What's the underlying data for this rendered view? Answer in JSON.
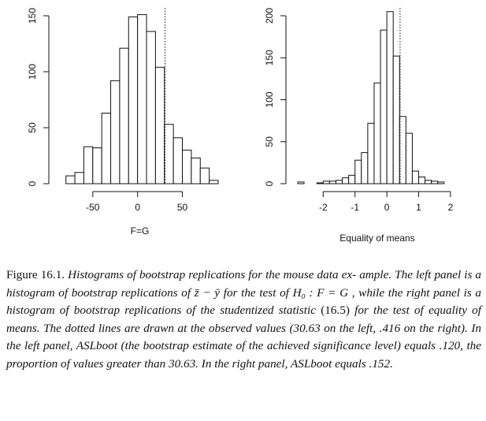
{
  "chart_data": [
    {
      "type": "bar",
      "xlabel": "F=G",
      "ylabel": "",
      "xlim": [
        -85,
        90
      ],
      "ylim": [
        0,
        150
      ],
      "x_ticks": [
        -50,
        0,
        50
      ],
      "y_ticks": [
        0,
        50,
        100,
        150
      ],
      "bin_edges": [
        -80,
        -70,
        -60,
        -50,
        -40,
        -30,
        -20,
        -10,
        0,
        10,
        20,
        30,
        40,
        50,
        60,
        70,
        80,
        90
      ],
      "values": [
        7,
        10,
        33,
        32,
        63,
        92,
        121,
        149,
        151,
        136,
        104,
        53,
        41,
        30,
        23,
        14,
        3
      ],
      "reference_line": 30.63,
      "grid": false
    },
    {
      "type": "bar",
      "xlabel": "Equality of means",
      "ylabel": "",
      "xlim": [
        -2.8,
        2.2
      ],
      "ylim": [
        0,
        200
      ],
      "x_ticks": [
        -2,
        -1,
        0,
        1,
        2
      ],
      "y_ticks": [
        0,
        50,
        100,
        150,
        200
      ],
      "bin_edges": [
        -2.8,
        -2.6,
        -2.4,
        -2.2,
        -2.0,
        -1.8,
        -1.6,
        -1.4,
        -1.2,
        -1.0,
        -0.8,
        -0.6,
        -0.4,
        -0.2,
        0.0,
        0.2,
        0.4,
        0.6,
        0.8,
        1.0,
        1.2,
        1.4,
        1.6,
        1.8,
        2.0
      ],
      "values": [
        2,
        0,
        0,
        1,
        3,
        3,
        4,
        7,
        10,
        28,
        37,
        72,
        120,
        183,
        205,
        152,
        80,
        60,
        15,
        8,
        4,
        3,
        2,
        0
      ],
      "reference_line": 0.416,
      "grid": false
    }
  ],
  "caption": {
    "label": "Figure 16.1.",
    "segments": [
      {
        "text": "Histograms of bootstrap replications for the mouse data ex-",
        "style": "it"
      },
      {
        "text": "ample. The left panel is a histogram of bootstrap replications of ",
        "style": "it"
      },
      {
        "text": "z̄ − ȳ",
        "style": "it"
      },
      {
        "text": " for the test of ",
        "style": "it"
      },
      {
        "text": "H₀ : F = G",
        "style": "it"
      },
      {
        "text": ", while the right panel is a histogram of bootstrap replications of the studentized statistic ",
        "style": "it"
      },
      {
        "text": "(16.5)",
        "style": "rm"
      },
      {
        "text": " for the test of equality of means. The dotted lines are drawn at the observed values (30.63 on the left, .416 on the right). In the left panel, ",
        "style": "it"
      },
      {
        "text": "ASLboot",
        "style": "it"
      },
      {
        "text": " (the bootstrap estimate of the achieved significance level) equals .120, the proportion of values greater than 30.63. In the right panel, ",
        "style": "it"
      },
      {
        "text": "ASLboot",
        "style": "it"
      },
      {
        "text": " equals .152.",
        "style": "it"
      }
    ]
  }
}
